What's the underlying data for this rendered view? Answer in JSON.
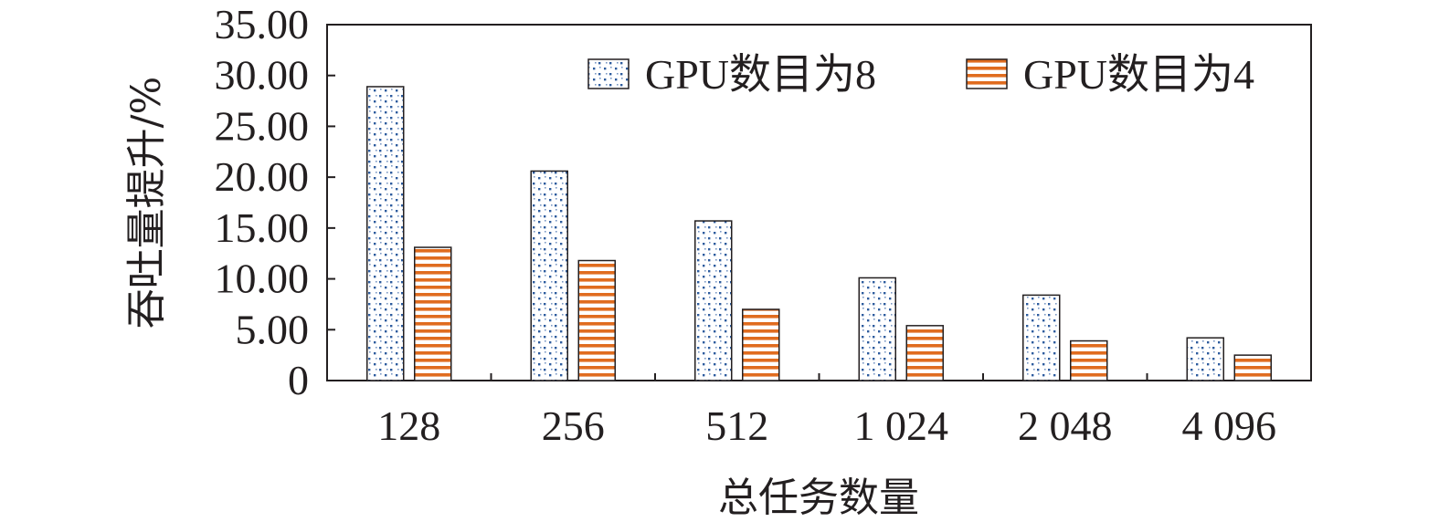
{
  "chart_data": {
    "type": "bar",
    "title": "",
    "xlabel": "总任务数量",
    "ylabel": "吞吐量提升/%",
    "categories": [
      "128",
      "256",
      "512",
      "1 024",
      "2 048",
      "4 096"
    ],
    "ylim": [
      0,
      35
    ],
    "yticks": [
      "0",
      "5.00",
      "10.00",
      "15.00",
      "20.00",
      "25.00",
      "30.00",
      "35.00"
    ],
    "grid": false,
    "legend_position": "top-right",
    "series": [
      {
        "name": "GPU数目为8",
        "values": [
          28.9,
          20.6,
          15.7,
          10.1,
          8.4,
          4.2
        ],
        "pattern": "dots",
        "color": "#2e5c9e",
        "fill": "#ffffff"
      },
      {
        "name": "GPU数目为4",
        "values": [
          13.1,
          11.8,
          7.0,
          5.4,
          3.9,
          2.5
        ],
        "pattern": "hstripes",
        "color": "#e06c1f",
        "fill": "#ffffff"
      }
    ]
  }
}
